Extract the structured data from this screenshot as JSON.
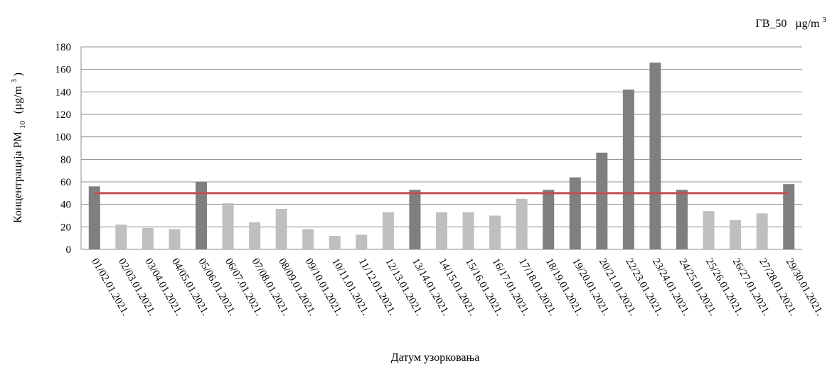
{
  "chart_data": {
    "type": "bar",
    "categories": [
      "01/02.01.2021.",
      "02/03.01.2021.",
      "03/04.01.2021.",
      "04/05.01.2021.",
      "05/06.01.2021.",
      "06/07.01.2021.",
      "07/08.01.2021.",
      "08/09.01.2021.",
      "09/10.01.2021.",
      "10/11.01.2021.",
      "11/12.01.2021.",
      "12/13.01.2021.",
      "13/14.01.2021.",
      "14/15.01.2021.",
      "15/16.01.2021.",
      "16/17.01.2021.",
      "17/18.01.2021.",
      "18/19.01.2021.",
      "19/20.01.2021.",
      "20/21.01.2021.",
      "22/23.01.2021.",
      "23/24.01.2021.",
      "24/25.01.2021.",
      "25/26.01.2021.",
      "26/27.01.2021.",
      "27/28.01.2021.",
      "29/30.01.2021."
    ],
    "values": [
      56,
      22,
      19,
      18,
      60,
      41,
      24,
      36,
      18,
      12,
      13,
      33,
      53,
      33,
      33,
      30,
      45,
      53,
      64,
      86,
      142,
      166,
      53,
      34,
      26,
      32,
      58
    ],
    "limit_value": 50,
    "legend_label": "ГВ_50",
    "legend_unit_base": "µg/m",
    "legend_unit_sup": "3",
    "ylabel_prefix": "Концентрација PM",
    "ylabel_sub": "10",
    "ylabel_unit_base": "(µg/m",
    "ylabel_unit_sup": "3",
    "ylabel_unit_close": ")",
    "xlabel": "Датум узорковања",
    "ylim": [
      0,
      180
    ],
    "yticks": [
      0,
      20,
      40,
      60,
      80,
      100,
      120,
      140,
      160,
      180
    ],
    "grid": true,
    "colors": {
      "above_limit": "#7f7f7f",
      "below_limit": "#bfbfbf",
      "limit_line": "#c0504d",
      "grid": "#8c8c8c"
    }
  }
}
